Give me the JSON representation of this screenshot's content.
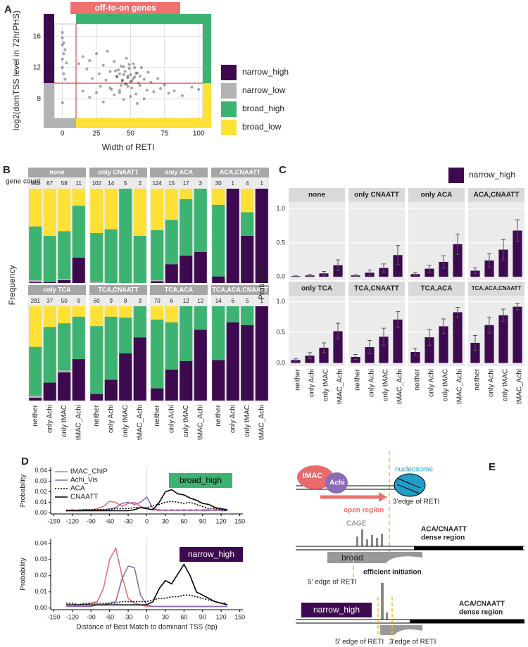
{
  "panel_labels": [
    "A",
    "B",
    "C",
    "D",
    "E"
  ],
  "chart_data": [
    {
      "type": "scatter",
      "annotation": "off-to-on genes",
      "annotation_color": "#f07070",
      "xlabel": "Width of RETI",
      "ylabel": "log2(domTSS level in 72hrPHS)",
      "x": [
        0,
        0,
        1,
        0,
        2,
        1,
        0,
        3,
        0,
        1,
        2,
        0,
        12,
        15,
        18,
        20,
        22,
        25,
        27,
        28,
        30,
        32,
        33,
        35,
        36,
        38,
        40,
        41,
        42,
        43,
        44,
        45,
        46,
        47,
        48,
        49,
        50,
        51,
        52,
        53,
        54,
        55,
        56,
        57,
        58,
        60,
        62,
        63,
        65,
        67,
        70,
        72,
        75,
        78,
        82,
        88,
        95,
        100,
        20,
        30,
        38,
        45,
        50,
        55,
        60,
        15,
        25,
        35,
        42,
        48,
        40,
        42,
        44,
        46,
        48,
        50,
        52,
        54,
        45,
        47,
        49,
        51,
        43,
        53,
        39,
        57
      ],
      "y": [
        16.5,
        15.8,
        15.2,
        14.9,
        14.3,
        13.8,
        13.1,
        12.6,
        12.0,
        11.2,
        10.5,
        7.5,
        12.5,
        13.4,
        11.8,
        12.9,
        10.6,
        13.8,
        11.2,
        9.6,
        12.3,
        10.4,
        14.1,
        11.5,
        9.2,
        12.8,
        10.9,
        11.7,
        8.8,
        12.2,
        10.3,
        11.1,
        9.9,
        13.2,
        10.7,
        11.9,
        10.2,
        9.4,
        12.5,
        10.8,
        8.6,
        11.3,
        10.0,
        9.7,
        12.0,
        10.5,
        9.1,
        11.4,
        10.1,
        8.9,
        10.6,
        9.3,
        9.8,
        8.7,
        9.0,
        8.4,
        9.5,
        9.2,
        8.2,
        7.6,
        8.5,
        7.9,
        8.3,
        7.4,
        8.0,
        9.0,
        8.8,
        9.4,
        9.1,
        9.6,
        10.8,
        11.2,
        10.4,
        11.5,
        10.9,
        11.1,
        10.6,
        11.3,
        12.1,
        9.9,
        12.4,
        10.3,
        9.7,
        12.0,
        11.6,
        10.9
      ],
      "point_color": "#000000",
      "xlim": [
        -6,
        103
      ],
      "ylim": [
        5.5,
        17.6
      ],
      "xticks": [
        0,
        25,
        50,
        75,
        100
      ],
      "yticks": [
        8,
        12,
        16
      ],
      "cutoffs": {
        "x": 10,
        "y": 10
      },
      "cutoff_color": "#e8202a",
      "legend": [
        {
          "name": "narrow_high",
          "color": "#3d0a4f"
        },
        {
          "name": "narrow_low",
          "color": "#b3b3b3"
        },
        {
          "name": "broad_high",
          "color": "#3cb371"
        },
        {
          "name": "broad_low",
          "color": "#ffe135"
        }
      ]
    },
    {
      "type": "stacked_bar_facets",
      "ylabel": "Frequency",
      "count_label": "gene count",
      "ylim": [
        0,
        1
      ],
      "categories": [
        "neither",
        "only Achi",
        "only tMAC",
        "tMAC_Achi"
      ],
      "facets": [
        {
          "title": "none",
          "counts": [
            543,
            67,
            58,
            11
          ],
          "layers": [
            [
              0.01,
              0.01,
              0.03,
              0.27
            ],
            [
              0.02,
              0,
              0.01,
              0
            ],
            [
              0.57,
              0.49,
              0.51,
              0.55
            ],
            [
              0.4,
              0.5,
              0.45,
              0.18
            ]
          ]
        },
        {
          "title": "only CNAATT",
          "counts": [
            102,
            14,
            5,
            2
          ],
          "layers": [
            [
              0,
              0,
              0,
              0
            ],
            [
              0.01,
              0,
              0,
              0
            ],
            [
              0.52,
              0.57,
              1,
              0.5
            ],
            [
              0.47,
              0.43,
              0,
              0.5
            ]
          ]
        },
        {
          "title": "only ACA",
          "counts": [
            124,
            15,
            17,
            3
          ],
          "layers": [
            [
              0.02,
              0.2,
              0.29,
              0.33
            ],
            [
              0.01,
              0,
              0,
              0
            ],
            [
              0.53,
              0.47,
              0.6,
              0.67
            ],
            [
              0.44,
              0.33,
              0.11,
              0
            ]
          ]
        },
        {
          "title": "ACA,CNAATT",
          "counts": [
            30,
            1,
            4,
            1
          ],
          "layers": [
            [
              0.07,
              1,
              0.5,
              1
            ],
            [
              0,
              0,
              0,
              0
            ],
            [
              0.76,
              0,
              0.25,
              0
            ],
            [
              0.17,
              0,
              0.25,
              0
            ]
          ]
        },
        {
          "title": "only TCA",
          "counts": [
            281,
            37,
            50,
            9
          ],
          "layers": [
            [
              0.03,
              0.19,
              0.3,
              0.44
            ],
            [
              0.02,
              0,
              0.02,
              0
            ],
            [
              0.52,
              0.59,
              0.5,
              0.45
            ],
            [
              0.43,
              0.22,
              0.18,
              0.11
            ]
          ]
        },
        {
          "title": "TCA,CNAATT",
          "counts": [
            60,
            9,
            8,
            3
          ],
          "layers": [
            [
              0.07,
              0.22,
              0.5,
              0.67
            ],
            [
              0,
              0,
              0,
              0
            ],
            [
              0.72,
              0.67,
              0.38,
              0.33
            ],
            [
              0.21,
              0.11,
              0.12,
              0
            ]
          ]
        },
        {
          "title": "TCA,ACA",
          "counts": [
            70,
            6,
            12,
            12
          ],
          "layers": [
            [
              0.13,
              0.33,
              0.42,
              0.75
            ],
            [
              0,
              0,
              0,
              0
            ],
            [
              0.73,
              0.5,
              0.58,
              0.25
            ],
            [
              0.14,
              0.17,
              0,
              0
            ]
          ]
        },
        {
          "title": "TCA,ACA,CNAATT",
          "counts": [
            14,
            6,
            5,
            1
          ],
          "layers": [
            [
              0.43,
              0.83,
              0.8,
              1
            ],
            [
              0,
              0,
              0,
              0
            ],
            [
              0.57,
              0.17,
              0.2,
              0
            ],
            [
              0,
              0,
              0,
              0
            ]
          ]
        }
      ]
    },
    {
      "type": "bar_facets",
      "ylabel": "Probability",
      "legend": {
        "name": "narrow_high",
        "color": "#3d0a4f"
      },
      "categories": [
        "neither",
        "only Achi",
        "only tMAC",
        "tMAC_Achi"
      ],
      "ylim": [
        -0.05,
        1.1
      ],
      "yticks": [
        {
          "value": 0,
          "label": "0.0"
        },
        0.5,
        {
          "value": 1,
          "label": "1.0"
        }
      ],
      "facets": [
        {
          "title": "none",
          "values": [
            0.01,
            0.02,
            0.05,
            0.17
          ],
          "errors": [
            0.005,
            0.015,
            0.03,
            0.08
          ]
        },
        {
          "title": "only CNAATT",
          "values": [
            0.02,
            0.06,
            0.13,
            0.32
          ],
          "errors": [
            0.01,
            0.04,
            0.06,
            0.14
          ]
        },
        {
          "title": "only ACA",
          "values": [
            0.04,
            0.12,
            0.22,
            0.48
          ],
          "errors": [
            0.02,
            0.05,
            0.09,
            0.15
          ]
        },
        {
          "title": "ACA,CNAATT",
          "values": [
            0.09,
            0.24,
            0.4,
            0.68
          ],
          "errors": [
            0.04,
            0.1,
            0.15,
            0.16
          ]
        },
        {
          "title": "only TCA",
          "values": [
            0.05,
            0.12,
            0.25,
            0.52
          ],
          "errors": [
            0.02,
            0.05,
            0.08,
            0.13
          ]
        },
        {
          "title": "TCA,CNAATT",
          "values": [
            0.1,
            0.26,
            0.43,
            0.71
          ],
          "errors": [
            0.04,
            0.11,
            0.14,
            0.13
          ]
        },
        {
          "title": "TCA,ACA",
          "values": [
            0.18,
            0.42,
            0.6,
            0.83
          ],
          "errors": [
            0.06,
            0.13,
            0.12,
            0.08
          ]
        },
        {
          "title": "TCA,ACA,CNAATT",
          "values": [
            0.33,
            0.62,
            0.78,
            0.92
          ],
          "errors": [
            0.12,
            0.13,
            0.1,
            0.05
          ]
        }
      ]
    },
    {
      "type": "line",
      "ylabel": "Probability",
      "annotation": "broad_high",
      "annotation_color": "#3cb371",
      "annotation_text_color": "#000000",
      "legend": true,
      "x": [
        -130,
        -120,
        -110,
        -100,
        -90,
        -80,
        -70,
        -60,
        -50,
        -40,
        -30,
        -20,
        -10,
        0,
        10,
        20,
        30,
        40,
        50,
        60,
        70,
        80,
        90,
        100,
        110,
        120,
        130
      ],
      "xlim": [
        -155,
        155
      ],
      "xticks": [
        -150,
        -120,
        -90,
        -60,
        -30,
        0,
        30,
        60,
        90,
        120,
        150
      ],
      "ylim": [
        -0.001,
        0.043
      ],
      "yticks": [
        {
          "value": 0,
          "label": "0.00"
        },
        0.01,
        0.02,
        0.03,
        0.04
      ],
      "series": [
        {
          "name": "tMAC_ChIP",
          "color": "#e8707a",
          "style": "solid",
          "values": [
            0.003,
            0.002,
            0.003,
            0.003,
            0.003,
            0.004,
            0.006,
            0.011,
            0.01,
            0.006,
            0.009,
            0.01,
            0.006,
            0.004,
            0.003,
            0.002,
            0.003,
            0.002,
            0.003,
            0.002,
            0.003,
            0.002,
            0.003,
            0.003,
            0.002,
            0.003,
            0.003
          ]
        },
        {
          "name": "Achi_Vis",
          "color": "#8a6bb5",
          "style": "solid",
          "values": [
            0.002,
            0.003,
            0.002,
            0.003,
            0.002,
            0.003,
            0.003,
            0.004,
            0.005,
            0.009,
            0.01,
            0.008,
            0.01,
            0.015,
            0.004,
            0.003,
            0.002,
            0.003,
            0.002,
            0.003,
            0.002,
            0.003,
            0.002,
            0.002,
            0.003,
            0.002,
            0.002
          ]
        },
        {
          "name": "ACA",
          "color": "#000000",
          "style": "dotted",
          "values": [
            0.002,
            0.002,
            0.002,
            0.003,
            0.003,
            0.003,
            0.003,
            0.003,
            0.004,
            0.004,
            0.004,
            0.005,
            0.005,
            0.005,
            0.007,
            0.008,
            0.01,
            0.011,
            0.01,
            0.009,
            0.01,
            0.008,
            0.006,
            0.004,
            0.004,
            0.003,
            0.002
          ]
        },
        {
          "name": "CNAATT",
          "color": "#000000",
          "style": "solid",
          "values": [
            0.002,
            0.002,
            0.002,
            0.002,
            0.002,
            0.002,
            0.002,
            0.002,
            0.002,
            0.002,
            0.002,
            0.003,
            0.005,
            0.004,
            0.003,
            0.01,
            0.02,
            0.022,
            0.018,
            0.017,
            0.014,
            0.012,
            0.009,
            0.008,
            0.005,
            0.004,
            0.003
          ]
        }
      ]
    },
    {
      "type": "line",
      "ylabel": "Probability",
      "xlabel": "Distance of Best Match to dominant TSS (bp)",
      "annotation": "narrow_high",
      "annotation_color": "#3d0a4f",
      "annotation_text_color": "#ffffff",
      "legend": false,
      "x": [
        -130,
        -120,
        -110,
        -100,
        -90,
        -80,
        -70,
        -60,
        -50,
        -40,
        -30,
        -20,
        -10,
        0,
        10,
        20,
        30,
        40,
        50,
        60,
        70,
        80,
        90,
        100,
        110,
        120,
        130
      ],
      "xlim": [
        -155,
        155
      ],
      "xticks": [
        -150,
        -120,
        -90,
        -60,
        -30,
        0,
        30,
        60,
        90,
        120,
        150
      ],
      "ylim": [
        -0.001,
        0.043
      ],
      "yticks": [
        {
          "value": 0,
          "label": "0.00"
        },
        0.01,
        0.02,
        0.03,
        0.04
      ],
      "series": [
        {
          "color": "#e8707a",
          "style": "solid",
          "values": [
            0.002,
            0.002,
            0.002,
            0.002,
            0.003,
            0.004,
            0.012,
            0.03,
            0.037,
            0.02,
            0.006,
            0.003,
            0.002,
            0.001,
            0.001,
            0.001,
            0.001,
            0.001,
            0.001,
            0.001,
            0.001,
            0.001,
            0.001,
            0.001,
            0.001,
            0.001,
            0.001
          ]
        },
        {
          "color": "#8a6bb5",
          "style": "solid",
          "values": [
            0.001,
            0.001,
            0.001,
            0.001,
            0.001,
            0.002,
            0.002,
            0.003,
            0.004,
            0.018,
            0.026,
            0.025,
            0.008,
            0.002,
            0.001,
            0.001,
            0.001,
            0.001,
            0.001,
            0.001,
            0.001,
            0.001,
            0.001,
            0.001,
            0.001,
            0.001,
            0.001
          ]
        },
        {
          "color": "#000000",
          "style": "dotted",
          "values": [
            0.003,
            0.003,
            0.002,
            0.003,
            0.003,
            0.003,
            0.003,
            0.003,
            0.003,
            0.004,
            0.004,
            0.004,
            0.004,
            0.004,
            0.005,
            0.006,
            0.006,
            0.007,
            0.007,
            0.008,
            0.008,
            0.007,
            0.006,
            0.005,
            0.004,
            0.003,
            0.003
          ]
        },
        {
          "color": "#000000",
          "style": "solid",
          "values": [
            0.002,
            0.002,
            0.002,
            0.002,
            0.002,
            0.002,
            0.002,
            0.002,
            0.002,
            0.002,
            0.002,
            0.002,
            0.002,
            0.002,
            0.004,
            0.012,
            0.017,
            0.015,
            0.021,
            0.027,
            0.02,
            0.01,
            0.008,
            0.006,
            0.004,
            0.003,
            0.002
          ]
        }
      ]
    }
  ],
  "diagram": {
    "tmac": "tMAC",
    "achi": "Achi",
    "nucleosome": "nucleosome",
    "edge3_top": "3'edge of RETI",
    "open_region": "open region",
    "cage": "CAGE",
    "dense_region": [
      "ACA/CNAATT",
      "dense region"
    ],
    "broad": "broad",
    "efficient": "efficient initiation",
    "edge5_mid": "5' edge of RETI",
    "narrow_high": "narrow_high",
    "edge5_bottom": "5' edge of RETI",
    "edge3_bottom": "3'edge of RETI"
  }
}
